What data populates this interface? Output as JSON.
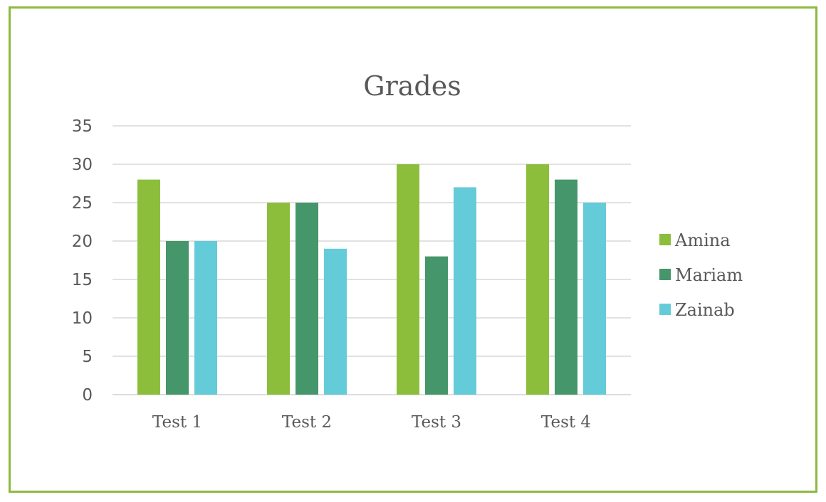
{
  "chart_data": {
    "type": "bar",
    "title": "Grades",
    "categories": [
      "Test 1",
      "Test 2",
      "Test 3",
      "Test 4"
    ],
    "series": [
      {
        "name": "Amina",
        "color": "#8cbe3c",
        "values": [
          28,
          25,
          30,
          30
        ]
      },
      {
        "name": "Mariam",
        "color": "#45966a",
        "values": [
          20,
          25,
          18,
          28
        ]
      },
      {
        "name": "Zainab",
        "color": "#64cbd9",
        "values": [
          20,
          19,
          27,
          25
        ]
      }
    ],
    "ylim": [
      0,
      35
    ],
    "yticks": [
      "0",
      "5",
      "10",
      "15",
      "20",
      "25",
      "30",
      "35"
    ],
    "grid": true,
    "legend": "right"
  },
  "colors": {
    "frame": "#8dba3f",
    "text": "#595959"
  }
}
